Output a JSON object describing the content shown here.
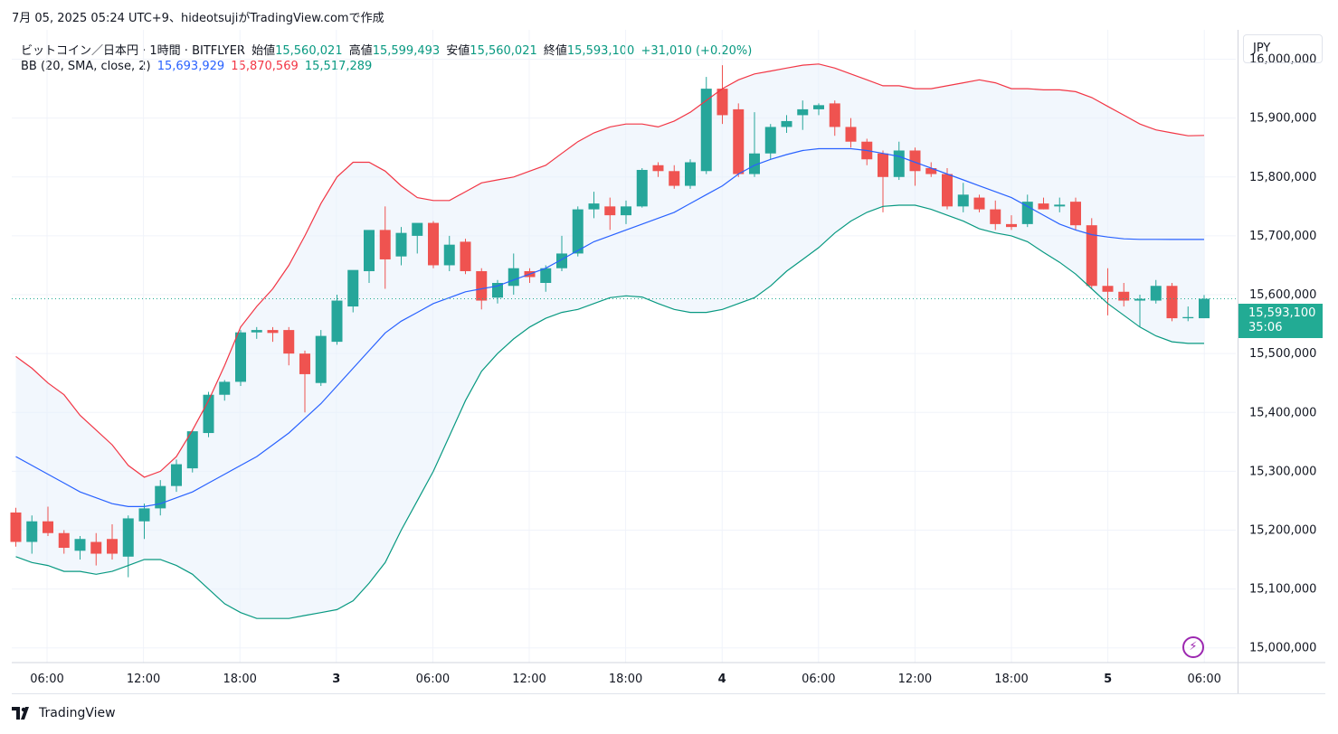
{
  "caption": "7月 05, 2025 05:24 UTC+9、hideotsujiがTradingView.comで作成",
  "legend": {
    "symbol": "ビットコイン／日本円 · 1時間 · BITFLYER",
    "open_label": "始値",
    "open": "15,560,021",
    "high_label": "高値",
    "high": "15,599,493",
    "low_label": "安値",
    "low": "15,560,021",
    "close_label": "終値",
    "close": "15,593,100",
    "change": "+31,010 (+0.20%)",
    "bb_label": "BB (20, SMA, close, 2)",
    "bb_basis": "15,693,929",
    "bb_upper": "15,870,569",
    "bb_lower": "15,517,289"
  },
  "currency": "JPY",
  "price_label": {
    "price": "15,593,100",
    "countdown": "35:06"
  },
  "branding": "TradingView",
  "colors": {
    "up": "#26a69a",
    "down": "#ef5350",
    "basis": "#2962ff",
    "upper": "#f23645",
    "lower": "#089981",
    "band_fill": "#e8f1fb"
  },
  "chart_data": {
    "type": "candlestick",
    "x_ticks": [
      "06:00",
      "12:00",
      "18:00",
      "3",
      "06:00",
      "12:00",
      "18:00",
      "4",
      "06:00",
      "12:00",
      "18:00",
      "5",
      "06:00"
    ],
    "y_ticks": [
      "15,000,000",
      "15,100,000",
      "15,200,000",
      "15,300,000",
      "15,400,000",
      "15,500,000",
      "15,600,000",
      "15,700,000",
      "15,800,000",
      "15,900,000",
      "16,000,000"
    ],
    "ylim": [
      14975000,
      16050000
    ],
    "last_price": 15593100,
    "candles": [
      [
        15230000,
        15238000,
        15172000,
        15180000
      ],
      [
        15180000,
        15225000,
        15160000,
        15215000
      ],
      [
        15215000,
        15240000,
        15190000,
        15195000
      ],
      [
        15195000,
        15200000,
        15160000,
        15170000
      ],
      [
        15165000,
        15190000,
        15150000,
        15185000
      ],
      [
        15180000,
        15195000,
        15140000,
        15160000
      ],
      [
        15185000,
        15210000,
        15150000,
        15160000
      ],
      [
        15155000,
        15225000,
        15120000,
        15220000
      ],
      [
        15215000,
        15245000,
        15185000,
        15237000
      ],
      [
        15237000,
        15285000,
        15225000,
        15275000
      ],
      [
        15275000,
        15320000,
        15265000,
        15312000
      ],
      [
        15305000,
        15370000,
        15298000,
        15368000
      ],
      [
        15365000,
        15435000,
        15358000,
        15430000
      ],
      [
        15430000,
        15455000,
        15420000,
        15452000
      ],
      [
        15452000,
        15540000,
        15445000,
        15536000
      ],
      [
        15536000,
        15545000,
        15525000,
        15540000
      ],
      [
        15540000,
        15545000,
        15520000,
        15535000
      ],
      [
        15540000,
        15545000,
        15480000,
        15500000
      ],
      [
        15500000,
        15505000,
        15400000,
        15465000
      ],
      [
        15450000,
        15540000,
        15445000,
        15530000
      ],
      [
        15520000,
        15600000,
        15515000,
        15590000
      ],
      [
        15580000,
        15640000,
        15570000,
        15642000
      ],
      [
        15640000,
        15700000,
        15620000,
        15710000
      ],
      [
        15710000,
        15750000,
        15610000,
        15660000
      ],
      [
        15665000,
        15715000,
        15650000,
        15705000
      ],
      [
        15700000,
        15720000,
        15670000,
        15722000
      ],
      [
        15722000,
        15725000,
        15645000,
        15650000
      ],
      [
        15650000,
        15700000,
        15640000,
        15685000
      ],
      [
        15690000,
        15695000,
        15635000,
        15640000
      ],
      [
        15640000,
        15645000,
        15575000,
        15590000
      ],
      [
        15595000,
        15625000,
        15585000,
        15620000
      ],
      [
        15615000,
        15670000,
        15600000,
        15645000
      ],
      [
        15640000,
        15645000,
        15620000,
        15630000
      ],
      [
        15620000,
        15650000,
        15605000,
        15645000
      ],
      [
        15645000,
        15700000,
        15640000,
        15670000
      ],
      [
        15670000,
        15750000,
        15665000,
        15745000
      ],
      [
        15745000,
        15775000,
        15730000,
        15755000
      ],
      [
        15750000,
        15765000,
        15710000,
        15735000
      ],
      [
        15735000,
        15760000,
        15720000,
        15750000
      ],
      [
        15750000,
        15815000,
        15748000,
        15812000
      ],
      [
        15820000,
        15825000,
        15800000,
        15810000
      ],
      [
        15810000,
        15820000,
        15780000,
        15785000
      ],
      [
        15785000,
        15830000,
        15780000,
        15825000
      ],
      [
        15810000,
        15970000,
        15805000,
        15950000
      ],
      [
        15950000,
        15990000,
        15890000,
        15905000
      ],
      [
        15915000,
        15925000,
        15800000,
        15805000
      ],
      [
        15805000,
        15910000,
        15800000,
        15840000
      ],
      [
        15840000,
        15890000,
        15830000,
        15885000
      ],
      [
        15885000,
        15905000,
        15875000,
        15895000
      ],
      [
        15905000,
        15930000,
        15880000,
        15915000
      ],
      [
        15915000,
        15925000,
        15905000,
        15922000
      ],
      [
        15925000,
        15930000,
        15870000,
        15885000
      ],
      [
        15885000,
        15900000,
        15850000,
        15860000
      ],
      [
        15860000,
        15865000,
        15820000,
        15830000
      ],
      [
        15840000,
        15845000,
        15740000,
        15800000
      ],
      [
        15800000,
        15860000,
        15795000,
        15845000
      ],
      [
        15845000,
        15850000,
        15785000,
        15810000
      ],
      [
        15815000,
        15825000,
        15800000,
        15805000
      ],
      [
        15805000,
        15815000,
        15745000,
        15750000
      ],
      [
        15750000,
        15790000,
        15740000,
        15770000
      ],
      [
        15765000,
        15770000,
        15740000,
        15745000
      ],
      [
        15745000,
        15760000,
        15710000,
        15720000
      ],
      [
        15720000,
        15735000,
        15710000,
        15715000
      ],
      [
        15720000,
        15770000,
        15715000,
        15758000
      ],
      [
        15755000,
        15765000,
        15745000,
        15745000
      ],
      [
        15750000,
        15765000,
        15740000,
        15753000
      ],
      [
        15758000,
        15765000,
        15710000,
        15718000
      ],
      [
        15718000,
        15730000,
        15610000,
        15615000
      ],
      [
        15615000,
        15645000,
        15565000,
        15605000
      ],
      [
        15605000,
        15620000,
        15580000,
        15590000
      ],
      [
        15590000,
        15600000,
        15545000,
        15593000
      ],
      [
        15590000,
        15625000,
        15585000,
        15615000
      ],
      [
        15615000,
        15620000,
        15555000,
        15560000
      ],
      [
        15560000,
        15580000,
        15555000,
        15562000
      ],
      [
        15560021,
        15599493,
        15560021,
        15593100
      ]
    ],
    "bb_upper": [
      15495000,
      15475000,
      15450000,
      15430000,
      15395000,
      15370000,
      15345000,
      15310000,
      15290000,
      15300000,
      15325000,
      15370000,
      15420000,
      15480000,
      15545000,
      15580000,
      15610000,
      15650000,
      15700000,
      15755000,
      15800000,
      15825000,
      15825000,
      15810000,
      15785000,
      15765000,
      15760000,
      15760000,
      15775000,
      15790000,
      15795000,
      15800000,
      15810000,
      15820000,
      15840000,
      15860000,
      15875000,
      15885000,
      15890000,
      15890000,
      15885000,
      15895000,
      15910000,
      15930000,
      15950000,
      15965000,
      15975000,
      15980000,
      15985000,
      15990000,
      15992000,
      15985000,
      15975000,
      15965000,
      15955000,
      15955000,
      15950000,
      15950000,
      15955000,
      15960000,
      15965000,
      15960000,
      15950000,
      15950000,
      15948000,
      15948000,
      15945000,
      15935000,
      15920000,
      15905000,
      15890000,
      15880000,
      15875000,
      15870000,
      15870569
    ],
    "bb_basis": [
      15325000,
      15310000,
      15295000,
      15280000,
      15265000,
      15255000,
      15245000,
      15240000,
      15240000,
      15245000,
      15255000,
      15265000,
      15280000,
      15295000,
      15310000,
      15325000,
      15345000,
      15365000,
      15390000,
      15415000,
      15445000,
      15475000,
      15505000,
      15535000,
      15555000,
      15570000,
      15585000,
      15595000,
      15605000,
      15610000,
      15615000,
      15625000,
      15635000,
      15645000,
      15660000,
      15675000,
      15690000,
      15700000,
      15710000,
      15720000,
      15730000,
      15740000,
      15755000,
      15770000,
      15785000,
      15805000,
      15820000,
      15830000,
      15838000,
      15845000,
      15848000,
      15848000,
      15848000,
      15845000,
      15840000,
      15835000,
      15825000,
      15815000,
      15805000,
      15795000,
      15785000,
      15775000,
      15765000,
      15750000,
      15735000,
      15720000,
      15710000,
      15702000,
      15698000,
      15695000,
      15694000,
      15694000,
      15693929,
      15693929,
      15693929
    ],
    "bb_lower": [
      15155000,
      15145000,
      15140000,
      15130000,
      15130000,
      15125000,
      15130000,
      15140000,
      15150000,
      15150000,
      15140000,
      15125000,
      15100000,
      15075000,
      15060000,
      15050000,
      15050000,
      15050000,
      15055000,
      15060000,
      15065000,
      15080000,
      15110000,
      15145000,
      15200000,
      15250000,
      15300000,
      15360000,
      15420000,
      15470000,
      15500000,
      15525000,
      15545000,
      15560000,
      15570000,
      15575000,
      15585000,
      15595000,
      15598000,
      15596000,
      15585000,
      15575000,
      15570000,
      15570000,
      15575000,
      15585000,
      15595000,
      15615000,
      15640000,
      15660000,
      15680000,
      15705000,
      15725000,
      15740000,
      15750000,
      15752000,
      15752000,
      15745000,
      15735000,
      15725000,
      15712000,
      15705000,
      15700000,
      15690000,
      15672000,
      15655000,
      15635000,
      15610000,
      15585000,
      15565000,
      15545000,
      15530000,
      15520000,
      15517289,
      15517289
    ]
  }
}
